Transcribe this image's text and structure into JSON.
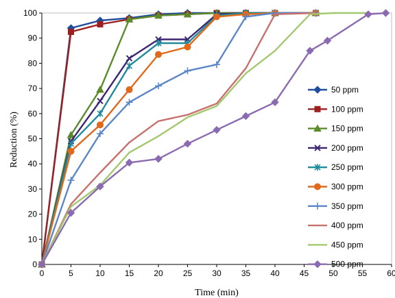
{
  "chart_data": {
    "type": "line",
    "title": "",
    "xlabel": "Time (min)",
    "ylabel": "Reduction (%)",
    "xlim": [
      0,
      60
    ],
    "ylim": [
      0,
      100
    ],
    "xticks": [
      0,
      5,
      10,
      15,
      20,
      25,
      30,
      35,
      40,
      45,
      50,
      55,
      60
    ],
    "yticks": [
      0,
      10,
      20,
      30,
      40,
      50,
      60,
      70,
      80,
      90,
      100
    ],
    "grid": false,
    "legend_position": "right",
    "series": [
      {
        "name": "50 ppm",
        "color": "#1f4e9c",
        "marker": "diamond",
        "x": [
          0,
          5,
          10,
          15,
          20,
          25,
          30,
          35,
          40,
          47
        ],
        "y": [
          0,
          94,
          97,
          98,
          99.5,
          100,
          100,
          100,
          100,
          100
        ]
      },
      {
        "name": "100 ppm",
        "color": "#9c2020",
        "marker": "square",
        "x": [
          0,
          5,
          10,
          15,
          20,
          25,
          30,
          35,
          40,
          47
        ],
        "y": [
          0,
          92.5,
          95.5,
          97.5,
          99,
          99.5,
          100,
          100,
          100,
          100
        ]
      },
      {
        "name": "150 ppm",
        "color": "#5b8a2a",
        "marker": "triangle",
        "x": [
          0,
          5,
          10,
          15,
          20,
          25,
          30,
          35,
          40,
          47
        ],
        "y": [
          0,
          51.5,
          69.5,
          97.5,
          99,
          99.5,
          100,
          100,
          100,
          100
        ]
      },
      {
        "name": "200 ppm",
        "color": "#3b2470",
        "marker": "x",
        "x": [
          0,
          5,
          10,
          15,
          20,
          25,
          30,
          35,
          40,
          47
        ],
        "y": [
          0,
          49,
          65,
          82,
          89.5,
          89.5,
          99.5,
          100,
          100,
          100
        ]
      },
      {
        "name": "250 ppm",
        "color": "#1f8a9c",
        "marker": "star",
        "x": [
          0,
          5,
          10,
          15,
          20,
          25,
          30,
          35,
          40,
          47
        ],
        "y": [
          0,
          48,
          60,
          79,
          88,
          88,
          99,
          100,
          100,
          100
        ]
      },
      {
        "name": "300 ppm",
        "color": "#e0691b",
        "marker": "circle",
        "x": [
          0,
          5,
          10,
          15,
          20,
          25,
          30,
          35,
          40,
          47
        ],
        "y": [
          0,
          45,
          55.5,
          69.5,
          83.5,
          86.5,
          98.5,
          99.5,
          100,
          100
        ]
      },
      {
        "name": "350 ppm",
        "color": "#5b86c8",
        "marker": "plus",
        "x": [
          0,
          5,
          10,
          15,
          20,
          25,
          30,
          35,
          40,
          47
        ],
        "y": [
          0,
          33.5,
          52,
          64.5,
          71,
          77,
          79.5,
          98.5,
          100,
          100
        ]
      },
      {
        "name": "400 ppm",
        "color": "#c8706e",
        "marker": "none",
        "x": [
          0,
          5,
          10,
          15,
          20,
          25,
          30,
          35,
          40,
          47
        ],
        "y": [
          0,
          24,
          36.5,
          48.5,
          57,
          59.5,
          64,
          78,
          99.5,
          100
        ]
      },
      {
        "name": "450 ppm",
        "color": "#a3c86e",
        "marker": "none",
        "x": [
          0,
          5,
          10,
          15,
          20,
          25,
          30,
          35,
          40,
          46,
          50,
          56
        ],
        "y": [
          0,
          23,
          31.5,
          44.5,
          51,
          58.5,
          63,
          76,
          85,
          99.5,
          100,
          100
        ]
      },
      {
        "name": "500 ppm",
        "color": "#8a6ab0",
        "marker": "diamond",
        "x": [
          0,
          5,
          10,
          15,
          20,
          25,
          30,
          35,
          40,
          46,
          49,
          56,
          59
        ],
        "y": [
          0,
          20.5,
          31,
          40.5,
          42,
          48,
          53.5,
          59,
          64.5,
          85,
          89,
          99.5,
          100
        ]
      }
    ]
  }
}
